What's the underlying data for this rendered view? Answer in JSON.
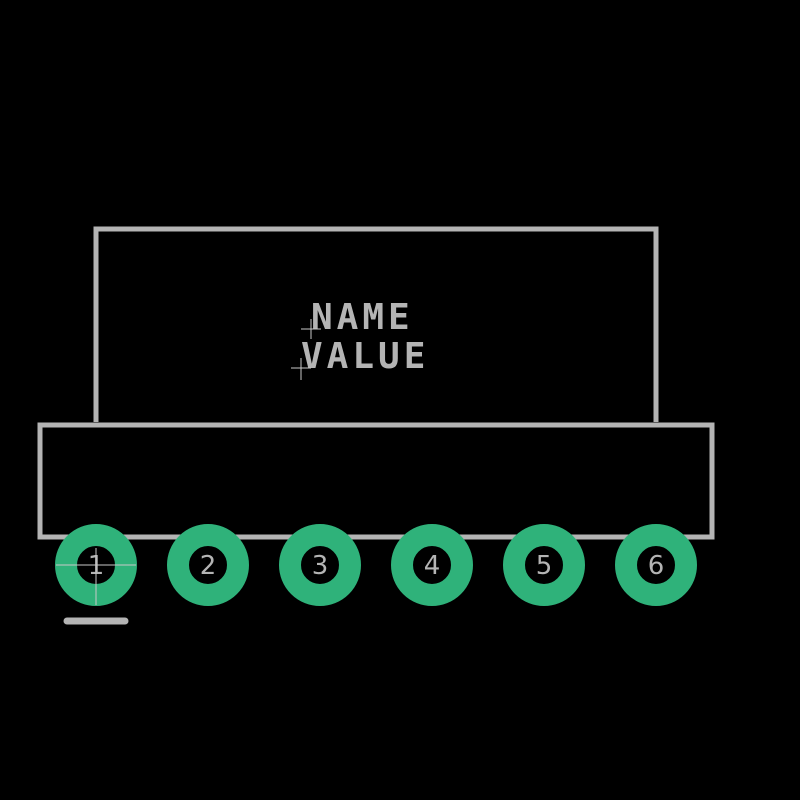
{
  "labels": {
    "name": "NAME",
    "value": "VALUE"
  },
  "pads": [
    {
      "number": "1"
    },
    {
      "number": "2"
    },
    {
      "number": "3"
    },
    {
      "number": "4"
    },
    {
      "number": "5"
    },
    {
      "number": "6"
    }
  ],
  "colors": {
    "background": "#000000",
    "silkscreen": "#b4b4b4",
    "pad_copper": "#2fb27a"
  }
}
